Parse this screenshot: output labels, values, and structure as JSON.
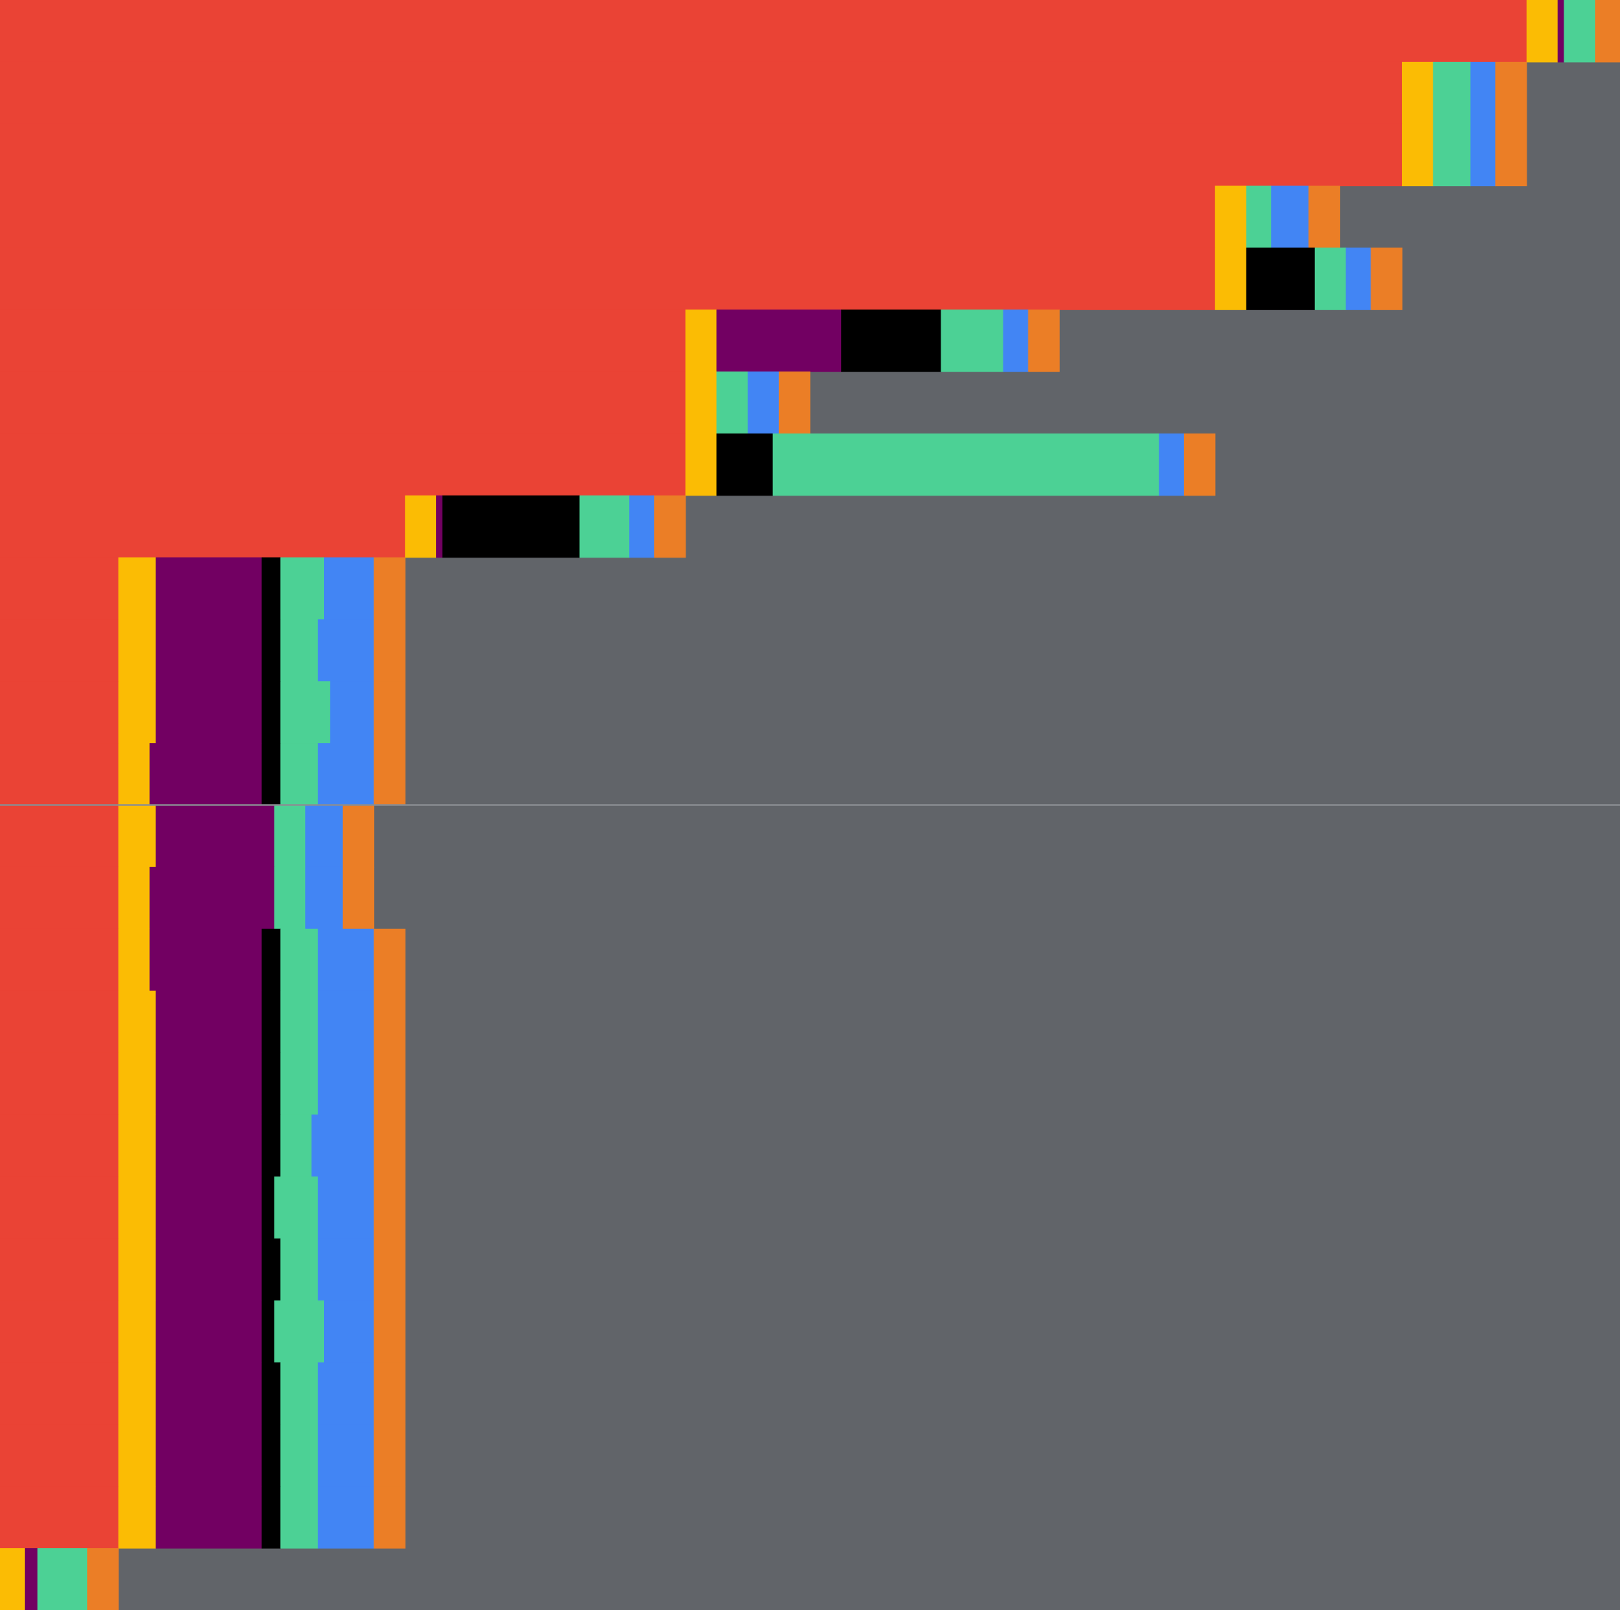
{
  "colors": {
    "background": "#616469",
    "divider": "#8a8d92",
    "red": "#EA4335",
    "yellow": "#FBBC04",
    "purple": "#720062",
    "black": "#000000",
    "green": "#4CD195",
    "blue": "#4285F4",
    "orange": "#EB7E26"
  },
  "chart_data": {
    "type": "bar",
    "orientation": "horizontal",
    "stacked": true,
    "title": "",
    "xlabel": "",
    "ylabel": "",
    "xlim": [
      0,
      52
    ],
    "grid": false,
    "legend": "none",
    "divider_after_row": 13,
    "segment_colors": [
      "red",
      "yellow",
      "purple",
      "black",
      "green",
      "blue",
      "orange"
    ],
    "rows": [
      [
        49.0,
        1.0,
        0.2,
        0.0,
        1.0,
        0.0,
        1.0
      ],
      [
        45.0,
        1.0,
        0.0,
        0.0,
        1.2,
        0.8,
        1.0
      ],
      [
        45.0,
        1.0,
        0.0,
        0.0,
        1.2,
        0.8,
        1.0
      ],
      [
        39.0,
        1.0,
        0.0,
        0.0,
        0.8,
        1.2,
        1.0
      ],
      [
        39.0,
        1.0,
        0.0,
        2.2,
        1.0,
        0.8,
        1.0
      ],
      [
        22.0,
        1.0,
        4.0,
        3.2,
        2.0,
        0.8,
        1.0
      ],
      [
        22.0,
        1.0,
        0.0,
        0.0,
        1.0,
        1.0,
        1.0
      ],
      [
        22.0,
        1.0,
        0.0,
        1.8,
        12.4,
        0.8,
        1.0
      ],
      [
        13.0,
        1.0,
        0.2,
        4.4,
        1.6,
        0.8,
        1.0
      ],
      [
        3.8,
        1.2,
        3.4,
        0.6,
        1.4,
        1.6,
        1.0
      ],
      [
        3.8,
        1.2,
        3.4,
        0.6,
        1.2,
        1.8,
        1.0
      ],
      [
        3.8,
        1.2,
        3.4,
        0.6,
        1.6,
        1.4,
        1.0
      ],
      [
        3.8,
        1.0,
        3.6,
        0.6,
        1.2,
        1.8,
        1.0
      ],
      [
        3.8,
        1.2,
        3.8,
        0.0,
        1.0,
        1.2,
        1.0
      ],
      [
        3.8,
        1.0,
        4.0,
        0.0,
        1.0,
        1.2,
        1.0
      ],
      [
        3.8,
        1.0,
        3.6,
        0.6,
        1.2,
        1.8,
        1.0
      ],
      [
        3.8,
        1.2,
        3.4,
        0.6,
        1.2,
        1.8,
        1.0
      ],
      [
        3.8,
        1.2,
        3.4,
        0.6,
        1.2,
        1.8,
        1.0
      ],
      [
        3.8,
        1.2,
        3.4,
        0.6,
        1.0,
        2.0,
        1.0
      ],
      [
        3.8,
        1.2,
        3.4,
        0.4,
        1.4,
        1.8,
        1.0
      ],
      [
        3.8,
        1.2,
        3.4,
        0.6,
        1.2,
        1.8,
        1.0
      ],
      [
        3.8,
        1.2,
        3.4,
        0.4,
        1.6,
        1.6,
        1.0
      ],
      [
        3.8,
        1.2,
        3.4,
        0.6,
        1.2,
        1.8,
        1.0
      ],
      [
        3.8,
        1.2,
        3.4,
        0.6,
        1.2,
        1.8,
        1.0
      ],
      [
        3.8,
        1.2,
        3.4,
        0.6,
        1.2,
        1.8,
        1.0
      ],
      [
        0.0,
        0.8,
        0.4,
        0.0,
        1.6,
        0.0,
        1.0
      ]
    ]
  }
}
